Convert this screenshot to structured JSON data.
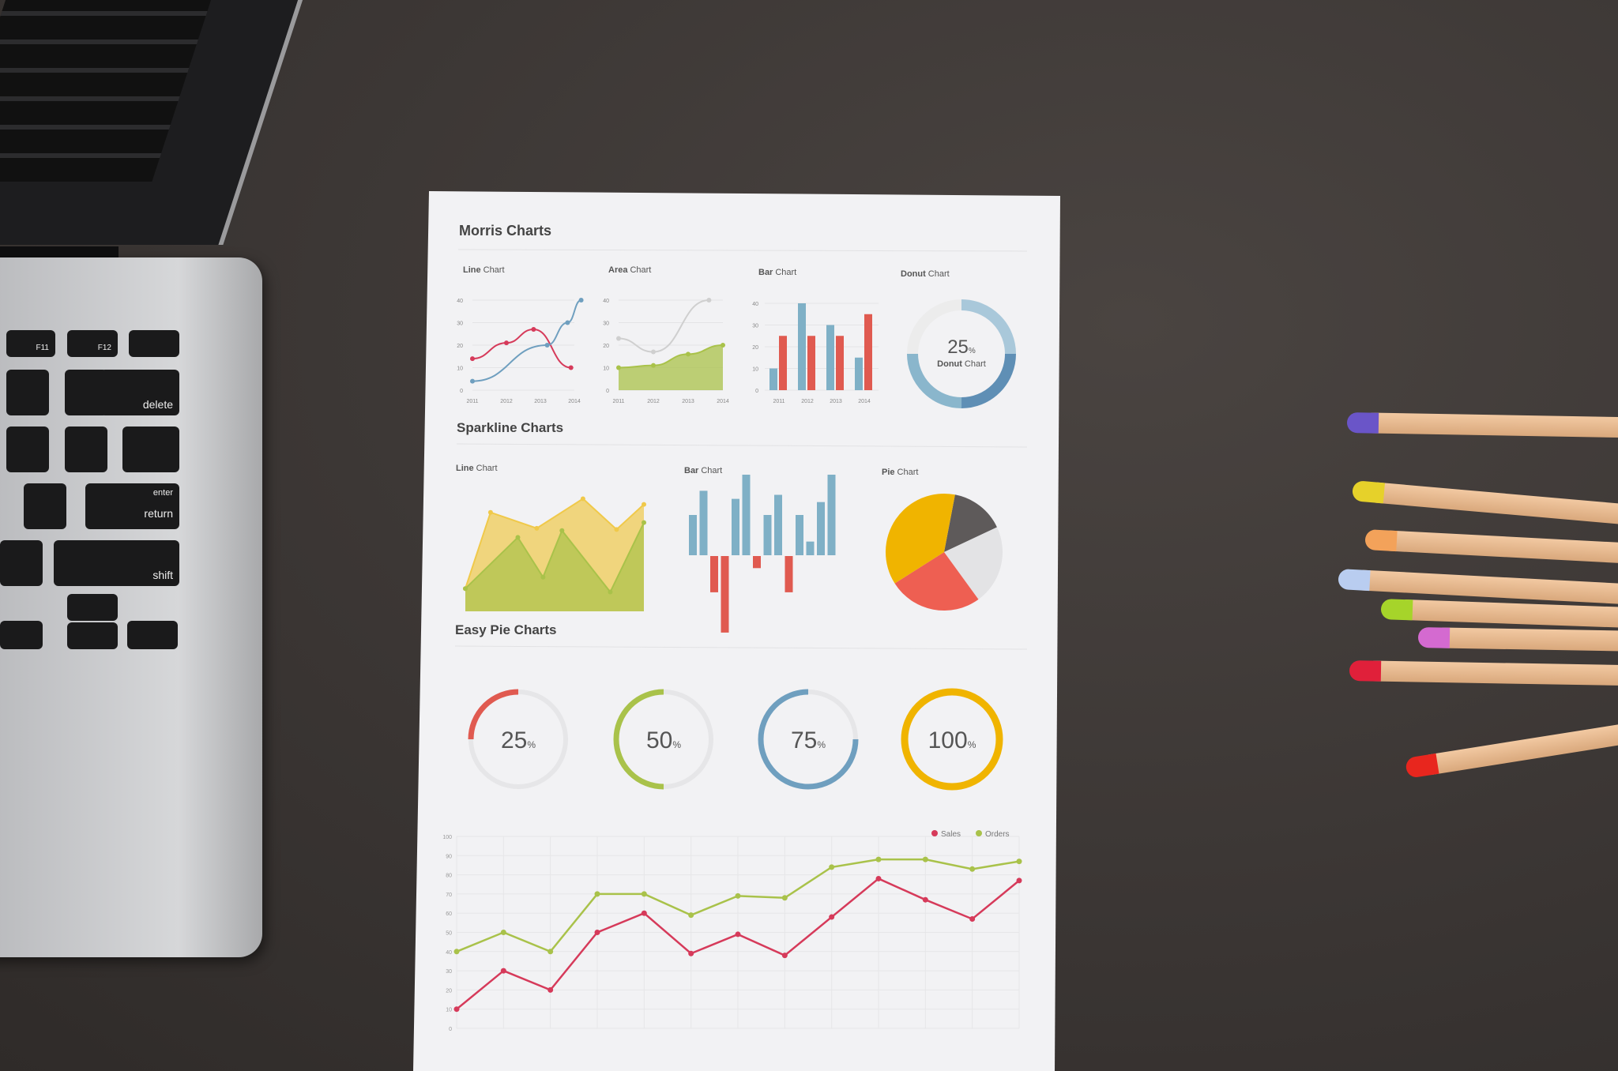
{
  "sheet": {
    "sections": {
      "morris": "Morris Charts",
      "sparkline": "Sparkline Charts",
      "easy_pie": "Easy Pie Charts"
    }
  },
  "keyboard": {
    "keys": [
      "F11",
      "F12",
      "delete",
      "enter",
      "return",
      "shift"
    ]
  },
  "colors": {
    "red": "#e05a50",
    "crimson": "#d63a5a",
    "blue": "#6f9fbf",
    "lightblue": "#8fb9cc",
    "green": "#a9c24a",
    "yellow": "#f0b400",
    "grey": "#e6e6e8",
    "darkgrey": "#5e5a5a"
  },
  "chart_data": [
    {
      "id": "morris_line",
      "type": "line",
      "title_bold": "Line",
      "title_rest": "Chart",
      "categories": [
        "2011",
        "2012",
        "2013",
        "2014"
      ],
      "yticks": [
        "0",
        "10",
        "20",
        "30",
        "40"
      ],
      "ylim": [
        0,
        40
      ],
      "series": [
        {
          "points": [
            [
              2011,
              14
            ],
            [
              2012,
              21
            ],
            [
              2012.8,
              27
            ],
            [
              2013.9,
              10
            ]
          ],
          "color": "#d63a5a"
        },
        {
          "points": [
            [
              2011,
              4
            ],
            [
              2013.2,
              20
            ],
            [
              2013.8,
              30
            ],
            [
              2014.2,
              40
            ]
          ],
          "color": "#6f9fbf"
        }
      ]
    },
    {
      "id": "morris_area",
      "type": "area",
      "title_bold": "Area",
      "title_rest": "Chart",
      "categories": [
        "2011",
        "2012",
        "2013",
        "2014"
      ],
      "yticks": [
        "0",
        "10",
        "20",
        "30",
        "40"
      ],
      "ylim": [
        0,
        40
      ],
      "series": [
        {
          "points": [
            [
              2011,
              23
            ],
            [
              2012,
              17
            ],
            [
              2013.6,
              40
            ]
          ],
          "color": "#cfcfcf",
          "fill": false
        },
        {
          "points": [
            [
              2011,
              10
            ],
            [
              2012,
              11
            ],
            [
              2013,
              16
            ],
            [
              2014,
              20
            ]
          ],
          "color": "#a9c24a",
          "fill": true
        }
      ]
    },
    {
      "id": "morris_bar",
      "type": "bar",
      "title_bold": "Bar",
      "title_rest": "Chart",
      "categories": [
        "2011",
        "2012",
        "2013",
        "2014"
      ],
      "yticks": [
        "0",
        "10",
        "20",
        "30",
        "40"
      ],
      "ylim": [
        0,
        40
      ],
      "series": [
        {
          "values": [
            10,
            40,
            30,
            15
          ],
          "color": "#7fb0c6"
        },
        {
          "values": [
            25,
            25,
            25,
            35
          ],
          "color": "#e05a50"
        }
      ]
    },
    {
      "id": "morris_donut",
      "type": "pie",
      "title_bold": "Donut",
      "title_rest": "Chart",
      "center_value": "25",
      "center_unit": "%",
      "center_label_bold": "Donut",
      "center_label_rest": "Chart",
      "values": [
        25,
        25,
        25,
        25
      ],
      "colors": [
        "#a9c8da",
        "#5f8fb5",
        "#8ab6cc",
        "#ececec"
      ]
    },
    {
      "id": "spark_line",
      "type": "area",
      "title_bold": "Line",
      "title_rest": "Chart",
      "series": [
        {
          "points": [
            [
              0,
              2
            ],
            [
              1.2,
              8.7
            ],
            [
              3.4,
              7.3
            ],
            [
              5.6,
              9.9
            ],
            [
              7.2,
              7.2
            ],
            [
              8.5,
              9.4
            ]
          ],
          "color": "#f0c94a"
        },
        {
          "points": [
            [
              0,
              2
            ],
            [
              2.5,
              6.5
            ],
            [
              3.7,
              3
            ],
            [
              4.6,
              7.1
            ],
            [
              6.9,
              1.7
            ],
            [
              8.5,
              7.8
            ]
          ],
          "color": "#a9c24a"
        }
      ]
    },
    {
      "id": "spark_bar",
      "type": "bar",
      "title_bold": "Bar",
      "title_rest": "Chart",
      "values": [
        5,
        8,
        -4.5,
        -9.5,
        7,
        10,
        -1.5,
        5,
        7.5,
        -4.5,
        5,
        1.7,
        6.6,
        10
      ],
      "colors": {
        "positive": "#7fb0c6",
        "negative": "#e05a50"
      }
    },
    {
      "id": "spark_pie",
      "type": "pie",
      "title_bold": "Pie",
      "title_rest": "Chart",
      "values": [
        15,
        22,
        26,
        37
      ],
      "colors": [
        "#5e5a5a",
        "#e3e3e5",
        "#ee5f52",
        "#f0b400"
      ]
    },
    {
      "id": "easy_pie",
      "type": "pie",
      "items": [
        {
          "value": 25,
          "label": "25",
          "unit": "%",
          "color": "#e05a50"
        },
        {
          "value": 50,
          "label": "50",
          "unit": "%",
          "color": "#a9c24a"
        },
        {
          "value": 75,
          "label": "75",
          "unit": "%",
          "color": "#6f9fbf"
        },
        {
          "value": 100,
          "label": "100",
          "unit": "%",
          "color": "#f0b400"
        }
      ]
    },
    {
      "id": "sales_orders",
      "type": "line",
      "yticks": [
        "0",
        "10",
        "20",
        "30",
        "40",
        "50",
        "60",
        "70",
        "80",
        "90",
        "100"
      ],
      "ylim": [
        0,
        100
      ],
      "legend": "top-right",
      "grid": true,
      "series": [
        {
          "name": "Sales",
          "color": "#d63a5a",
          "values": [
            10,
            30,
            20,
            50,
            60,
            39,
            49,
            38,
            58,
            78,
            67,
            57,
            77
          ]
        },
        {
          "name": "Orders",
          "color": "#a9c24a",
          "values": [
            40,
            50,
            40,
            70,
            70,
            59,
            69,
            68,
            84,
            88,
            88,
            83,
            87
          ]
        }
      ]
    }
  ]
}
